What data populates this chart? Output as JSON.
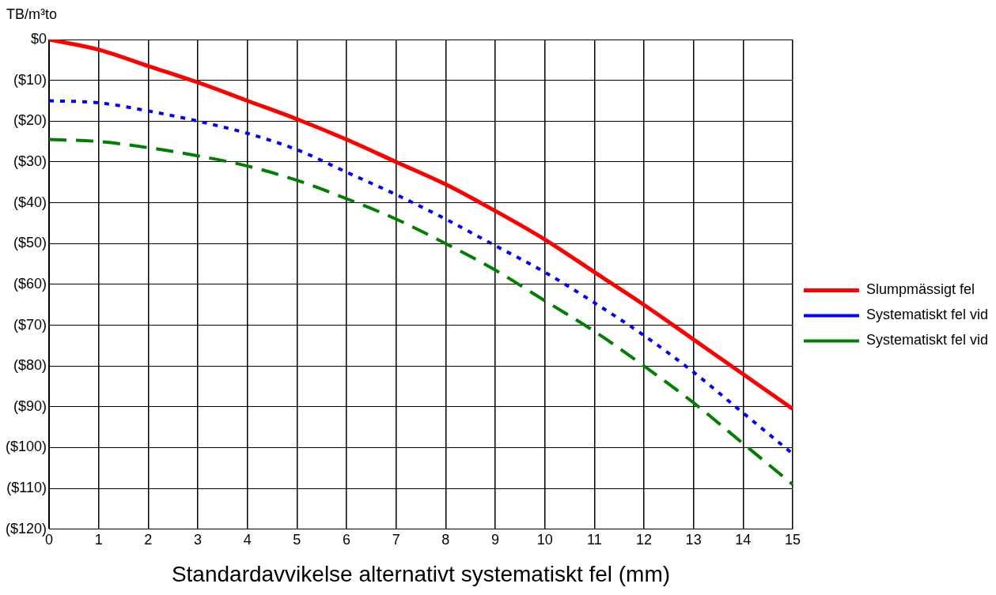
{
  "chart_data": {
    "type": "line",
    "xlabel": "Standardavvikelse alternativt systematiskt fel (mm)",
    "ylabel": "TB/m³to",
    "x": [
      0,
      1,
      2,
      3,
      4,
      5,
      6,
      7,
      8,
      9,
      10,
      11,
      12,
      13,
      14,
      15
    ],
    "xlim": [
      0,
      15
    ],
    "xticks": [
      0,
      1,
      2,
      3,
      4,
      5,
      6,
      7,
      8,
      9,
      10,
      11,
      12,
      13,
      14,
      15
    ],
    "ylim": [
      -120,
      0
    ],
    "yticks": [
      {
        "value": 0,
        "label": "$0"
      },
      {
        "value": -10,
        "label": "($10)"
      },
      {
        "value": -20,
        "label": "($20)"
      },
      {
        "value": -30,
        "label": "($30)"
      },
      {
        "value": -40,
        "label": "($40)"
      },
      {
        "value": -50,
        "label": "($50)"
      },
      {
        "value": -60,
        "label": "($60)"
      },
      {
        "value": -70,
        "label": "($70)"
      },
      {
        "value": -80,
        "label": "($80)"
      },
      {
        "value": -90,
        "label": "($90)"
      },
      {
        "value": -100,
        "label": "($100)"
      },
      {
        "value": -110,
        "label": "($110)"
      },
      {
        "value": -120,
        "label": "($120)"
      }
    ],
    "grid": true,
    "legend": "right",
    "marker": "none",
    "series": [
      {
        "name": "Slumpmässigt fel",
        "color": "#ff0000",
        "line_style": "solid",
        "values": [
          0,
          -2.5,
          -6.5,
          -10.5,
          -15,
          -19.5,
          -24.5,
          -30,
          -35.5,
          -42,
          -49,
          -57,
          -65,
          -73.5,
          -82,
          -90.5
        ]
      },
      {
        "name": "Systematiskt fel vid",
        "color": "#0000ff",
        "line_style": "dotted",
        "values": [
          -15,
          -15.5,
          -17.5,
          -20,
          -23,
          -27,
          -32.5,
          -38,
          -44,
          -50.5,
          -57,
          -64.5,
          -72.5,
          -81.5,
          -91.5,
          -101.5
        ]
      },
      {
        "name": "Systematiskt fel vid",
        "color": "#008000",
        "line_style": "dashed",
        "values": [
          -24.5,
          -25,
          -26.5,
          -28.5,
          -31,
          -34.5,
          -39,
          -44,
          -50,
          -56.5,
          -64,
          -71.5,
          -80,
          -89,
          -99,
          -109
        ]
      }
    ]
  }
}
